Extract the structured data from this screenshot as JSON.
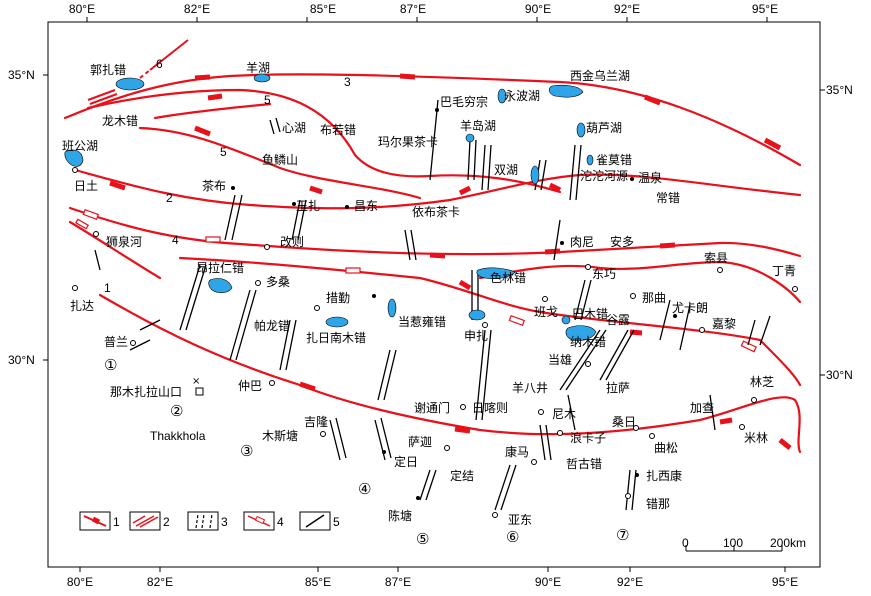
{
  "top_axis": [
    "80°E",
    "82°E",
    "85°E",
    "87°E",
    "90°E",
    "92°E",
    "95°E"
  ],
  "bottom_axis": [
    "80°E",
    "82°E",
    "85°E",
    "87°E",
    "90°E",
    "92°E",
    "95°E"
  ],
  "left_axis": [
    "35°N",
    "30°N"
  ],
  "right_axis": [
    "35°N",
    "30°N"
  ],
  "fault_numbers": [
    "1",
    "2",
    "3",
    "4",
    "5",
    "5",
    "6"
  ],
  "lakes": [
    "郭扎错",
    "龙木错",
    "羊湖",
    "班公湖",
    "心湖",
    "布若错",
    "玛尔果茶卡",
    "巴毛穷宗",
    "永波湖",
    "羊岛湖",
    "双湖",
    "西金乌兰湖",
    "葫芦湖",
    "雀莫错",
    "昂拉仁错",
    "依布茶卡",
    "当惹雍错",
    "色林错",
    "纳木错",
    "巴木错"
  ],
  "places": [
    "日土",
    "狮泉河",
    "扎达",
    "普兰",
    "那木扎拉山口",
    "Thakkhola",
    "仲巴",
    "木斯塘",
    "吉隆",
    "萨迦",
    "定日",
    "定结",
    "陈塘",
    "康马",
    "亚东",
    "谢通门",
    "日喀则",
    "羊八井",
    "尼木",
    "浪卡子",
    "哲古错",
    "扎西康",
    "错那",
    "桑日",
    "曲松",
    "加查",
    "米林",
    "林芝",
    "拉萨",
    "当雄",
    "班戈",
    "申扎",
    "措勤",
    "扎日南木错",
    "帕龙错",
    "多桑",
    "玉扎",
    "昌东",
    "茶布",
    "改则",
    "鱼鳞山",
    "沱沱河源",
    "温泉",
    "常错",
    "肉尼",
    "安多",
    "东巧",
    "那曲",
    "索县",
    "丁青",
    "谷露",
    "尤卡朗",
    "嘉黎"
  ],
  "rift_ids": [
    "①",
    "②",
    "③",
    "④",
    "⑤",
    "⑥",
    "⑦"
  ],
  "legend": [
    "1",
    "2",
    "3",
    "4",
    "5"
  ],
  "scale": {
    "ticks": [
      "0",
      "100",
      "200km"
    ]
  },
  "colors": {
    "fault": "#e8101a",
    "lake": "#2fa4e7",
    "frame": "#000000"
  }
}
